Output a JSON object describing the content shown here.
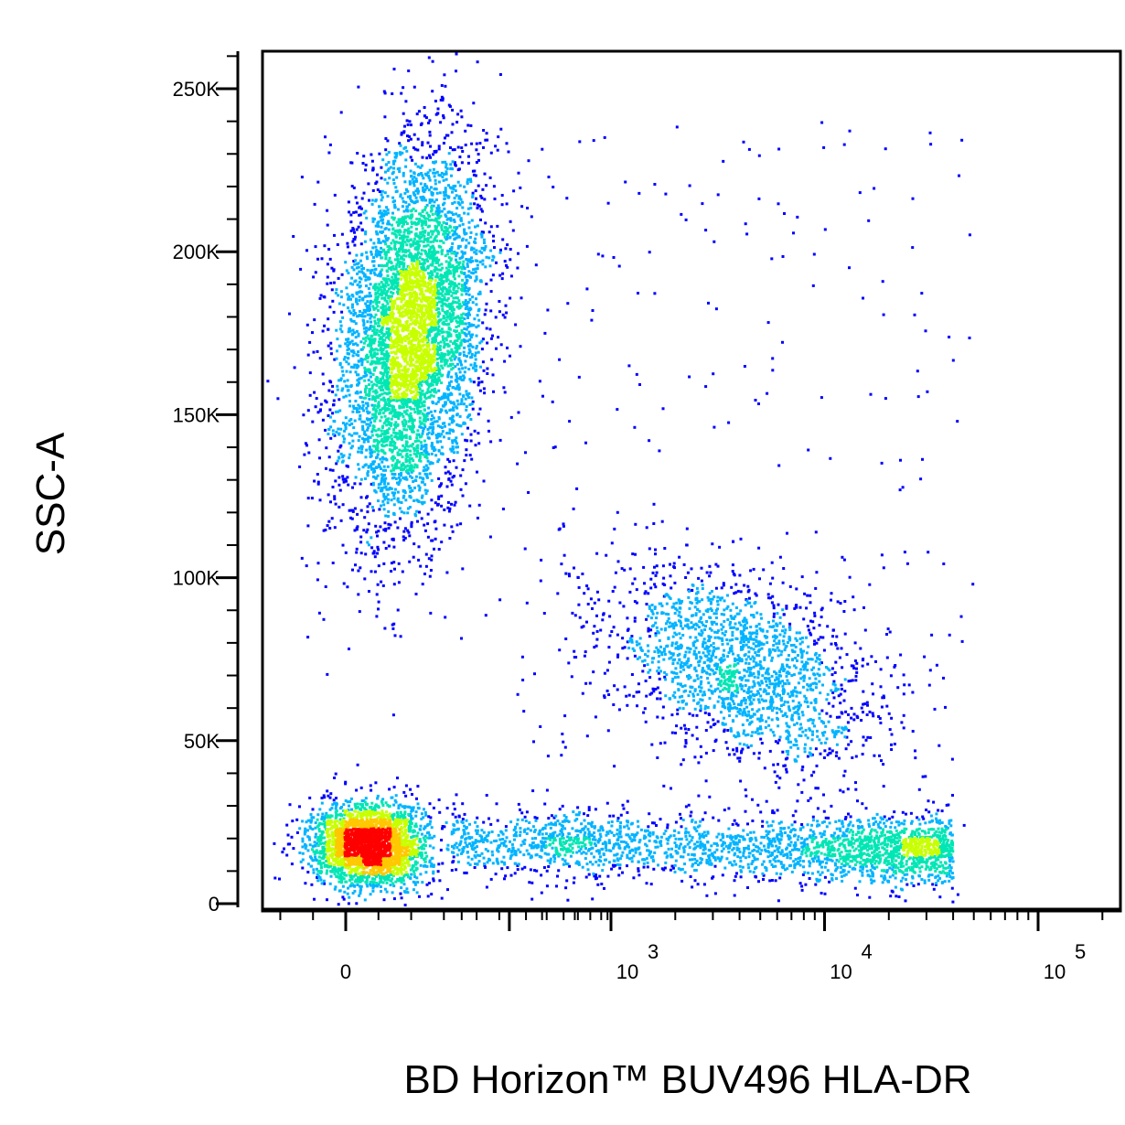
{
  "chart_data": {
    "type": "scatter",
    "style": "flow cytometry pseudocolor density dot plot",
    "xlabel": "BD Horizon™ BUV496 HLA-DR",
    "ylabel": "SSC-A",
    "x_scale": "biexponential (logicle)",
    "x_range": [
      -300,
      150000
    ],
    "y_range": [
      -3000,
      262144
    ],
    "x_ticks": [
      {
        "value": 0,
        "label": "0",
        "exp": ""
      },
      {
        "value": 1000,
        "label": "10",
        "exp": "3"
      },
      {
        "value": 10000,
        "label": "10",
        "exp": "4"
      },
      {
        "value": 100000,
        "label": "10",
        "exp": "5"
      }
    ],
    "y_ticks": [
      {
        "value": 0,
        "label": "0"
      },
      {
        "value": 50000,
        "label": "50K"
      },
      {
        "value": 100000,
        "label": "100K"
      },
      {
        "value": 150000,
        "label": "150K"
      },
      {
        "value": 200000,
        "label": "200K"
      },
      {
        "value": 250000,
        "label": "250K"
      }
    ],
    "populations": [
      {
        "name": "",
        "x_center": 40,
        "x_sd": 22,
        "y_center": 175000,
        "y_sd": 29000,
        "count": 5200
      },
      {
        "name": "",
        "x_center": 15,
        "x_sd": 18,
        "y_center": 18000,
        "y_sd": 6500,
        "count": 2600
      },
      {
        "name": "",
        "x_from": 120,
        "x_to": 40000,
        "y_center": 19000,
        "y_sd": 5000,
        "count": 2400
      },
      {
        "name": "",
        "x_center": 4000,
        "x_sd_log10": 0.32,
        "y_center": 72000,
        "y_sd": 14000,
        "count": 1900
      }
    ],
    "grid": false,
    "legend": "none",
    "colors": {
      "low_density": "#0000ff",
      "mid_low_density": "#00b4ff",
      "mid_density": "#00e6b4",
      "mid_high_density": "#c8ff00",
      "high_density": "#ffc800",
      "peak_density": "#ff0000",
      "axis": "#000000"
    }
  }
}
